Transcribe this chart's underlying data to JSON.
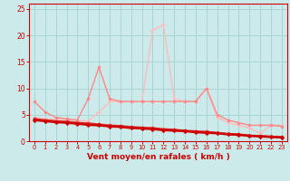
{
  "background_color": "#cceaea",
  "grid_color": "#aad4d4",
  "xlabel": "Vent moyen/en rafales ( km/h )",
  "xlabel_color": "#cc0000",
  "tick_color": "#cc0000",
  "spine_color": "#cc0000",
  "xlim": [
    -0.5,
    23.5
  ],
  "ylim": [
    0,
    26
  ],
  "yticks": [
    0,
    5,
    10,
    15,
    20,
    25
  ],
  "xticks": [
    0,
    1,
    2,
    3,
    4,
    5,
    6,
    7,
    8,
    9,
    10,
    11,
    12,
    13,
    14,
    15,
    16,
    17,
    18,
    19,
    20,
    21,
    22,
    23
  ],
  "series": [
    {
      "x": [
        0,
        1,
        2,
        3,
        4,
        5,
        6,
        7,
        8,
        9,
        10,
        11,
        12,
        13,
        14,
        15,
        16,
        17,
        18,
        19,
        20,
        21,
        22,
        23
      ],
      "y": [
        4.0,
        3.8,
        3.6,
        3.5,
        3.3,
        3.1,
        3.0,
        2.8,
        2.7,
        2.5,
        2.4,
        2.3,
        2.1,
        2.0,
        1.9,
        1.7,
        1.6,
        1.5,
        1.3,
        1.2,
        1.0,
        0.9,
        0.8,
        0.7
      ],
      "color": "#cc0000",
      "lw": 1.8,
      "marker": "D",
      "ms": 2.0,
      "mew": 0.8,
      "zorder": 5
    },
    {
      "x": [
        0,
        1,
        2,
        3,
        4,
        5,
        6,
        7,
        8,
        9,
        10,
        11,
        12,
        13,
        14,
        15,
        16,
        17,
        18,
        19,
        20,
        21,
        22,
        23
      ],
      "y": [
        4.2,
        4.0,
        3.8,
        3.7,
        3.5,
        3.4,
        3.2,
        3.0,
        2.9,
        2.7,
        2.6,
        2.5,
        2.3,
        2.2,
        2.0,
        1.9,
        1.8,
        1.6,
        1.4,
        1.3,
        1.1,
        1.0,
        0.9,
        0.8
      ],
      "color": "#dd3333",
      "lw": 1.4,
      "marker": "o",
      "ms": 2.0,
      "mew": 0.6,
      "zorder": 4
    },
    {
      "x": [
        0,
        1,
        2,
        3,
        4,
        5,
        6,
        7,
        8,
        9,
        10,
        11,
        12,
        13,
        14,
        15,
        16,
        17,
        18,
        19,
        20,
        21,
        22,
        23
      ],
      "y": [
        7.5,
        5.5,
        4.5,
        4.2,
        4.0,
        8.0,
        14.0,
        8.0,
        7.5,
        7.5,
        7.5,
        7.5,
        7.5,
        7.5,
        7.5,
        7.5,
        10.0,
        5.0,
        4.0,
        3.5,
        3.0,
        3.0,
        3.0,
        2.8
      ],
      "color": "#ff8888",
      "lw": 1.0,
      "marker": "o",
      "ms": 2.0,
      "mew": 0.5,
      "zorder": 3
    },
    {
      "x": [
        0,
        1,
        2,
        3,
        4,
        5,
        6,
        7,
        8,
        9,
        10,
        11,
        12,
        13,
        14,
        15,
        16,
        17,
        18,
        19,
        20,
        21,
        22,
        23
      ],
      "y": [
        4.5,
        4.3,
        4.1,
        4.0,
        3.9,
        3.8,
        5.5,
        7.5,
        7.5,
        7.5,
        7.5,
        21.0,
        22.0,
        8.0,
        7.5,
        7.5,
        10.0,
        4.5,
        3.5,
        3.0,
        2.5,
        1.5,
        3.0,
        3.0
      ],
      "color": "#ffbbbb",
      "lw": 1.0,
      "marker": "+",
      "ms": 3.5,
      "mew": 0.8,
      "zorder": 2
    }
  ]
}
